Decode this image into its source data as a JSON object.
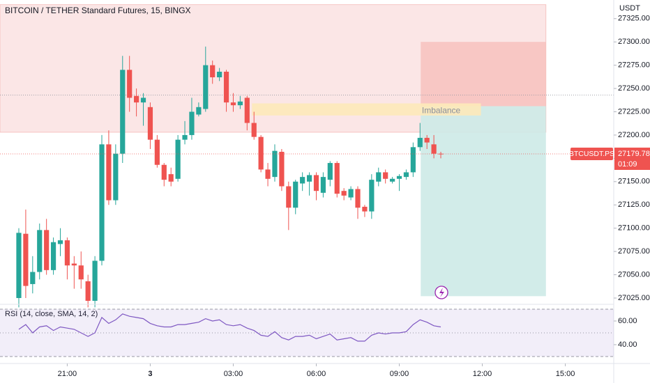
{
  "chart_data": {
    "type": "candlestick",
    "title": "BITCOIN / TETHER Standard Futures, 15, BINGX",
    "currency": "USDT",
    "symbol": "BTCUSDT.PS",
    "last_price": 27179.78,
    "countdown": "01:09",
    "up_color": "#26a69a",
    "down_color": "#ef5350",
    "open": [
      27025,
      27094,
      27040,
      27053,
      27098,
      27055,
      27083,
      27087,
      27062,
      27060,
      27043,
      27022,
      27065,
      27190,
      27130,
      27180,
      27270,
      27242,
      27235,
      27230,
      27195,
      27168,
      27158,
      27153,
      27195,
      27200,
      27222,
      27228,
      27275,
      27262,
      27268,
      27235,
      27232,
      27240,
      27213,
      27198,
      27163,
      27155,
      27182,
      27145,
      27122,
      27148,
      27150,
      27157,
      27138,
      27152,
      27170,
      27140,
      27133,
      27142,
      27123,
      27118,
      27150,
      27160,
      27150,
      27153,
      27155,
      27160,
      27187,
      27197,
      27190,
      27180
    ],
    "high": [
      27100,
      27120,
      27070,
      27105,
      27110,
      27090,
      27100,
      27090,
      27070,
      27075,
      27050,
      27070,
      27200,
      27205,
      27190,
      27285,
      27285,
      27250,
      27245,
      27235,
      27200,
      27170,
      27165,
      27200,
      27215,
      27240,
      27235,
      27295,
      27280,
      27272,
      27270,
      27245,
      27242,
      27242,
      27225,
      27200,
      27170,
      27190,
      27185,
      27150,
      27152,
      27160,
      27160,
      27160,
      27160,
      27172,
      27172,
      27143,
      27145,
      27145,
      27125,
      27158,
      27165,
      27163,
      27155,
      27158,
      27163,
      27192,
      27213,
      27200,
      27200,
      27182
    ],
    "low": [
      27015,
      27025,
      27030,
      27045,
      27050,
      27050,
      27070,
      27045,
      27035,
      27035,
      27015,
      27015,
      27060,
      27125,
      27125,
      27170,
      27225,
      27220,
      27210,
      27185,
      27165,
      27145,
      27145,
      27150,
      27190,
      27195,
      27220,
      27225,
      27255,
      27258,
      27225,
      27225,
      27228,
      27205,
      27195,
      27160,
      27145,
      27150,
      27140,
      27098,
      27115,
      27140,
      27135,
      27130,
      27133,
      27145,
      27133,
      27130,
      27130,
      27110,
      27112,
      27110,
      27145,
      27148,
      27148,
      27140,
      27152,
      27155,
      27183,
      27185,
      27175,
      27175
    ],
    "close": [
      27095,
      27038,
      27053,
      27098,
      27055,
      27085,
      27087,
      27060,
      27060,
      27045,
      27022,
      27065,
      27190,
      27130,
      27180,
      27270,
      27240,
      27235,
      27240,
      27195,
      27168,
      27152,
      27150,
      27195,
      27200,
      27225,
      27230,
      27275,
      27262,
      27268,
      27235,
      27232,
      27236,
      27213,
      27198,
      27163,
      27153,
      27183,
      27145,
      27122,
      27150,
      27155,
      27157,
      27140,
      27155,
      27170,
      27137,
      27135,
      27142,
      27122,
      27118,
      27152,
      27160,
      27153,
      27153,
      27156,
      27160,
      27187,
      27197,
      27192,
      27180,
      27179.78
    ],
    "ylim": [
      27022,
      27345
    ],
    "yticks": [
      {
        "value": 27325,
        "label": "27325.00"
      },
      {
        "value": 27300,
        "label": "27300.00"
      },
      {
        "value": 27275,
        "label": "27275.00"
      },
      {
        "value": 27250,
        "label": "27250.00"
      },
      {
        "value": 27225,
        "label": "27225.00"
      },
      {
        "value": 27200,
        "label": "27200.00"
      },
      {
        "value": 27175,
        "label": "27175.00"
      },
      {
        "value": 27150,
        "label": "27150.00"
      },
      {
        "value": 27125,
        "label": "27125.00"
      },
      {
        "value": 27100,
        "label": "27100.00"
      },
      {
        "value": 27075,
        "label": "27075.00"
      },
      {
        "value": 27050,
        "label": "27050.00"
      },
      {
        "value": 27025,
        "label": "27025.00"
      }
    ],
    "xlim": [
      -2.72,
      86
    ],
    "xticks": [
      {
        "value": 7,
        "label": "21:00"
      },
      {
        "value": 19,
        "label": "3"
      },
      {
        "value": 31,
        "label": "03:00"
      },
      {
        "value": 43,
        "label": "06:00"
      },
      {
        "value": 55,
        "label": "09:00"
      },
      {
        "value": 67,
        "label": "12:00"
      },
      {
        "value": 79,
        "label": "15:00"
      }
    ],
    "levels": [
      27243
    ],
    "zones": [
      {
        "x": [
          -2.72,
          76.2
        ],
        "y": [
          27203,
          27340
        ],
        "color": "#fbe4e4"
      },
      {
        "x": [
          58.1,
          76.2
        ],
        "y": [
          27231,
          27300
        ],
        "color": "#f7c3c0"
      },
      {
        "x": [
          58.1,
          76.2
        ],
        "y": [
          27027,
          27231
        ],
        "color": "#cdeae7"
      },
      {
        "name": "Imbalance",
        "x": [
          33.7,
          66.8
        ],
        "y": [
          27221,
          27234
        ],
        "color": "#fde9b9"
      }
    ],
    "indicator": {
      "title": "RSI (14, close, SMA, 14, 2)",
      "color": "#7e57c2",
      "values": [
        53,
        57,
        50,
        55,
        56,
        52,
        55,
        54,
        53,
        50,
        47,
        50,
        63,
        58,
        61,
        66,
        64,
        63,
        62,
        58,
        56,
        55,
        55,
        57,
        57,
        58,
        59,
        62,
        60,
        61,
        57,
        56,
        57,
        54,
        52,
        48,
        47,
        51,
        46,
        44,
        47,
        47,
        48,
        45,
        47,
        49,
        44,
        45,
        46,
        43,
        43,
        48,
        50,
        49,
        50,
        50,
        51,
        57,
        61,
        59,
        56,
        55
      ],
      "ylim": [
        24.1,
        74.1
      ],
      "yticks": [
        {
          "value": 60,
          "label": "60.00"
        },
        {
          "value": 40,
          "label": "40.00"
        }
      ],
      "bands": [
        70,
        50,
        30
      ]
    }
  }
}
